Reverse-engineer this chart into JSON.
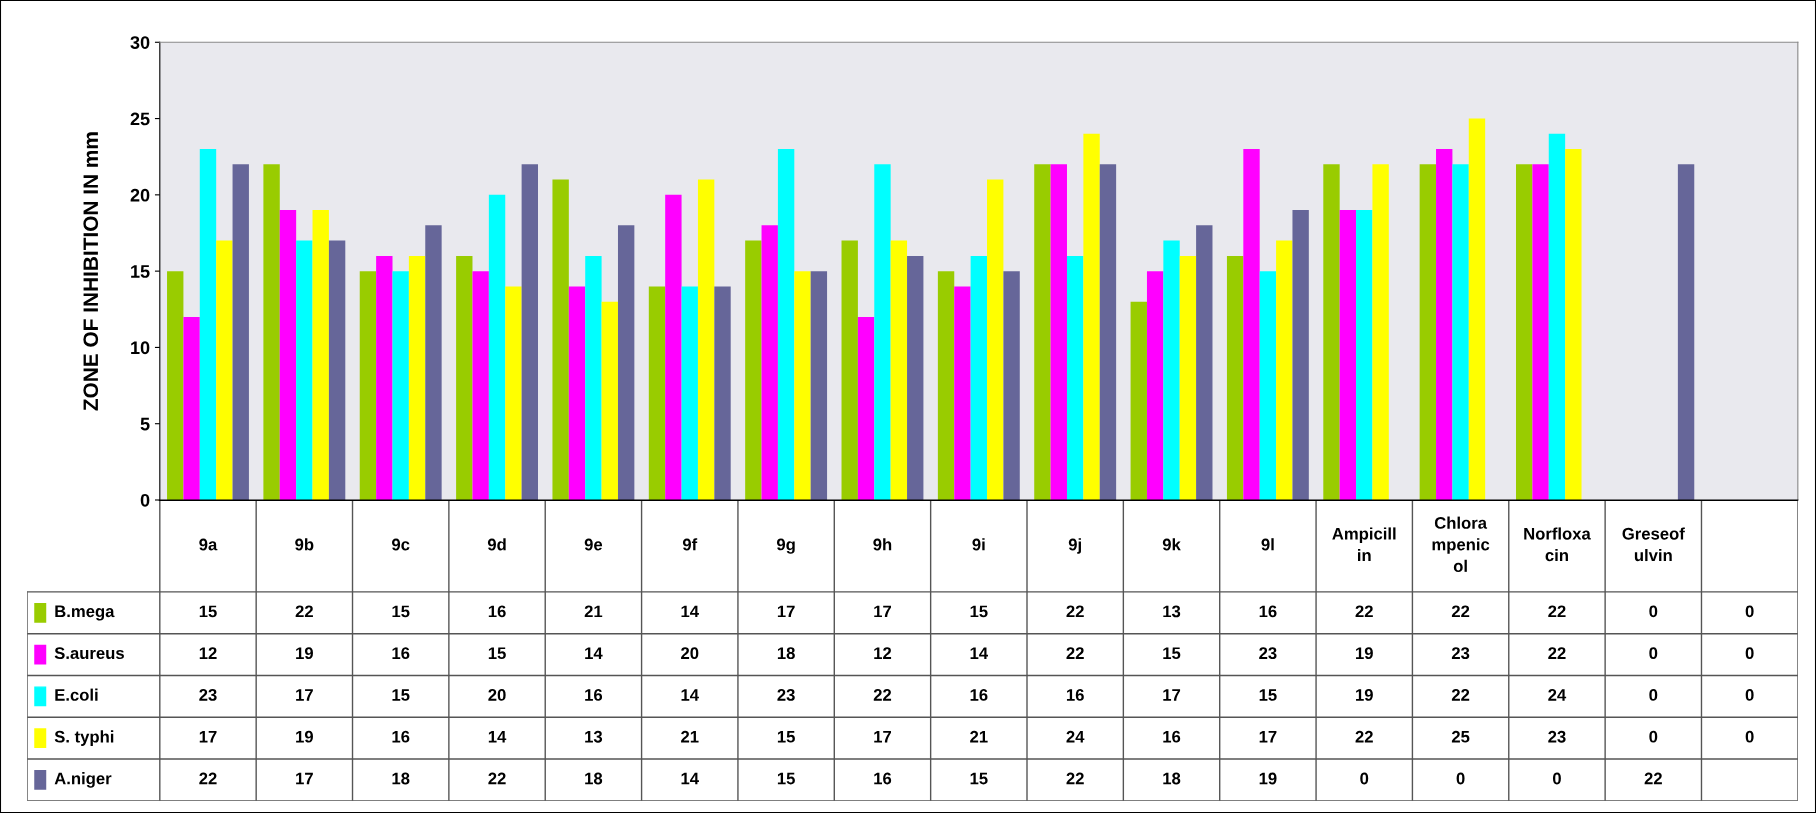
{
  "chart_data": {
    "type": "bar",
    "ylabel": "ZONE OF INHIBITION IN mm",
    "categories": [
      "9a",
      "9b",
      "9c",
      "9d",
      "9e",
      "9f",
      "9g",
      "9h",
      "9i",
      "9j",
      "9k",
      "9l",
      "Ampicill\nin",
      "Chlora\nmpenic\nol",
      "Norfloxa\ncin",
      "Greseof\nulvin",
      null
    ],
    "series": [
      {
        "name": "B.mega",
        "color": "#99cc00",
        "values": [
          15,
          22,
          15,
          16,
          21,
          14,
          17,
          17,
          15,
          22,
          13,
          16,
          22,
          22,
          22,
          0,
          0
        ]
      },
      {
        "name": "S.aureus",
        "color": "#ff00ff",
        "values": [
          12,
          19,
          16,
          15,
          14,
          20,
          18,
          12,
          14,
          22,
          15,
          23,
          19,
          23,
          22,
          0,
          0
        ]
      },
      {
        "name": "E.coli",
        "color": "#00ffff",
        "values": [
          23,
          17,
          15,
          20,
          16,
          14,
          23,
          22,
          16,
          16,
          17,
          15,
          19,
          22,
          24,
          0,
          0
        ]
      },
      {
        "name": "S. typhi",
        "color": "#ffff00",
        "values": [
          17,
          19,
          16,
          14,
          13,
          21,
          15,
          17,
          21,
          24,
          16,
          17,
          22,
          25,
          23,
          0,
          0
        ]
      },
      {
        "name": "A.niger",
        "color": "#666699",
        "values": [
          22,
          17,
          18,
          22,
          18,
          14,
          15,
          16,
          15,
          22,
          18,
          19,
          0,
          0,
          0,
          22,
          null
        ]
      }
    ],
    "ylim": [
      0,
      30
    ],
    "yticks": [
      0,
      5,
      10,
      15,
      20,
      25,
      30
    ],
    "grid": false,
    "legend": "bottom",
    "data_labels": true
  }
}
